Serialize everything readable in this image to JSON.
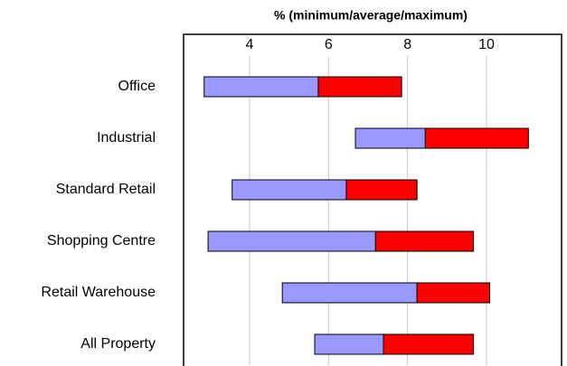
{
  "chart_data": {
    "type": "bar",
    "orientation": "horizontal",
    "floating": true,
    "title": "% (minimum/average/maximum)",
    "categories": [
      "Office",
      "Industrial",
      "Standard Retail",
      "Shopping Centre",
      "Retail Warehouse",
      "All Property"
    ],
    "min": [
      2.85,
      6.68,
      3.56,
      2.95,
      4.83,
      5.65
    ],
    "avg": [
      5.74,
      8.45,
      6.45,
      7.19,
      8.24,
      7.39
    ],
    "max": [
      7.85,
      11.06,
      8.24,
      9.67,
      10.08,
      9.67
    ],
    "low_color": "#9999ff",
    "high_color": "#ff0000",
    "xlim": [
      2.33,
      11.9
    ],
    "xticks": [
      4,
      6,
      8,
      10
    ],
    "grid": true
  }
}
